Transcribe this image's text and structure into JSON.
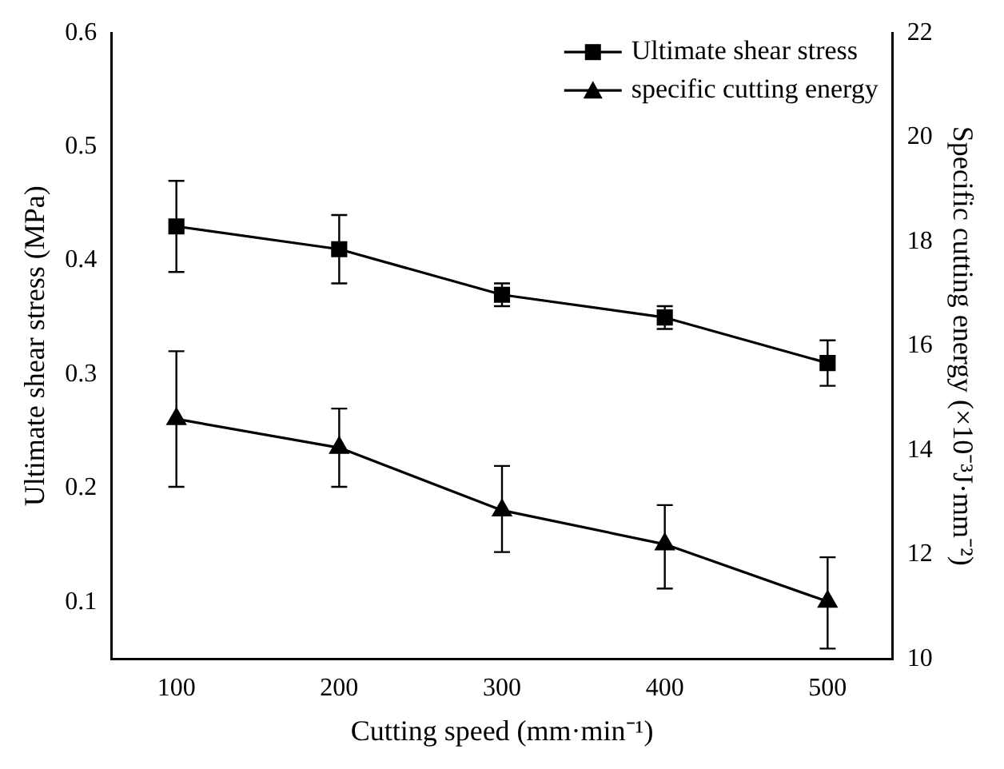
{
  "chart_data": {
    "type": "line",
    "xlabel": "Cutting speed (mm·min⁻¹)",
    "ylabel": "Ultimate shear stress (MPa)",
    "y2label": "Specific cutting energy (×10⁻³J·mm⁻²)",
    "x": [
      100,
      200,
      300,
      400,
      500
    ],
    "xlim": [
      60,
      540
    ],
    "xticks": [
      100,
      200,
      300,
      400,
      500
    ],
    "ylim": [
      0.05,
      0.6
    ],
    "yticks": [
      0.1,
      0.2,
      0.3,
      0.4,
      0.5,
      0.6
    ],
    "y2lim": [
      10,
      22
    ],
    "y2ticks": [
      10,
      12,
      14,
      16,
      18,
      20,
      22
    ],
    "series": [
      {
        "name": "Ultimate shear stress",
        "color": "#000000",
        "marker": "square",
        "values": [
          0.43,
          0.41,
          0.37,
          0.35,
          0.31
        ],
        "errors": [
          0.04,
          0.03,
          0.01,
          0.01,
          0.02
        ]
      },
      {
        "name": "specific cutting energy",
        "color": "#000000",
        "marker": "triangle",
        "axis": "y2",
        "values": [
          14.6,
          14.05,
          12.85,
          12.2,
          11.1
        ],
        "errors": [
          [
            13.3,
            15.9
          ],
          [
            13.3,
            14.8
          ],
          [
            12.05,
            13.7
          ],
          [
            11.35,
            12.95
          ],
          [
            10.2,
            11.95
          ]
        ]
      }
    ],
    "legend": "top right",
    "grid": false,
    "line_style": "solid"
  }
}
